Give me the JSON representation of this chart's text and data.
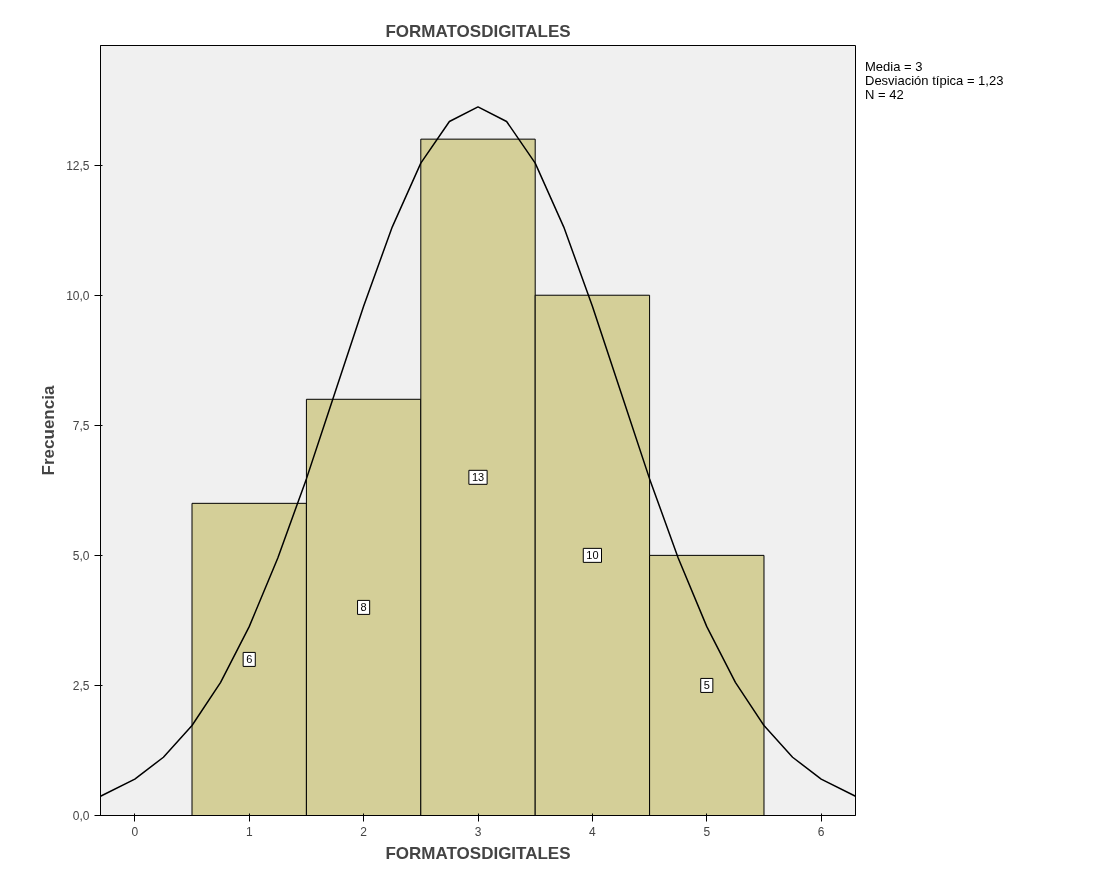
{
  "chart_data": {
    "type": "histogram",
    "title": "FORMATOSDIGITALES",
    "xlabel": "FORMATOSDIGITALES",
    "ylabel": "Frecuencia",
    "bins": [
      0.5,
      1.5,
      2.5,
      3.5,
      4.5,
      5.5
    ],
    "values": [
      6,
      8,
      13,
      10,
      5
    ],
    "color": "#d4cf98",
    "value_labels": [
      "6",
      "8",
      "13",
      "10",
      "5"
    ],
    "series": [
      {
        "type": "line",
        "color": "#000000",
        "x": [
          -0.3,
          0,
          0.25,
          0.5,
          0.75,
          1,
          1.25,
          1.5,
          1.75,
          2,
          2.25,
          2.5,
          2.75,
          3,
          3.25,
          3.5,
          3.75,
          4,
          4.25,
          4.5,
          4.75,
          5,
          5.25,
          5.5,
          5.75,
          6,
          6.3
        ],
        "values": [
          0.37,
          0.7,
          1.12,
          1.73,
          2.56,
          3.63,
          4.95,
          6.47,
          8.13,
          9.79,
          11.31,
          12.54,
          13.34,
          13.62,
          13.34,
          12.54,
          11.31,
          9.79,
          8.13,
          6.47,
          4.95,
          3.63,
          2.56,
          1.73,
          1.12,
          0.7,
          0.37
        ]
      }
    ],
    "xlim": [
      -0.3,
      6.3
    ],
    "ylim": [
      0,
      14.8
    ],
    "xticks": [
      0,
      1,
      2,
      3,
      4,
      5,
      6
    ],
    "yticks": [
      {
        "value": 0,
        "label": "0,0"
      },
      {
        "value": 2.5,
        "label": "2,5"
      },
      {
        "value": 5,
        "label": "5,0"
      },
      {
        "value": 7.5,
        "label": "7,5"
      },
      {
        "value": 10,
        "label": "10,0"
      },
      {
        "value": 12.5,
        "label": "12,5"
      }
    ],
    "annotations": [
      "Media = 3",
      "Desviación típica = 1,23",
      "N = 42"
    ],
    "grid": false
  }
}
